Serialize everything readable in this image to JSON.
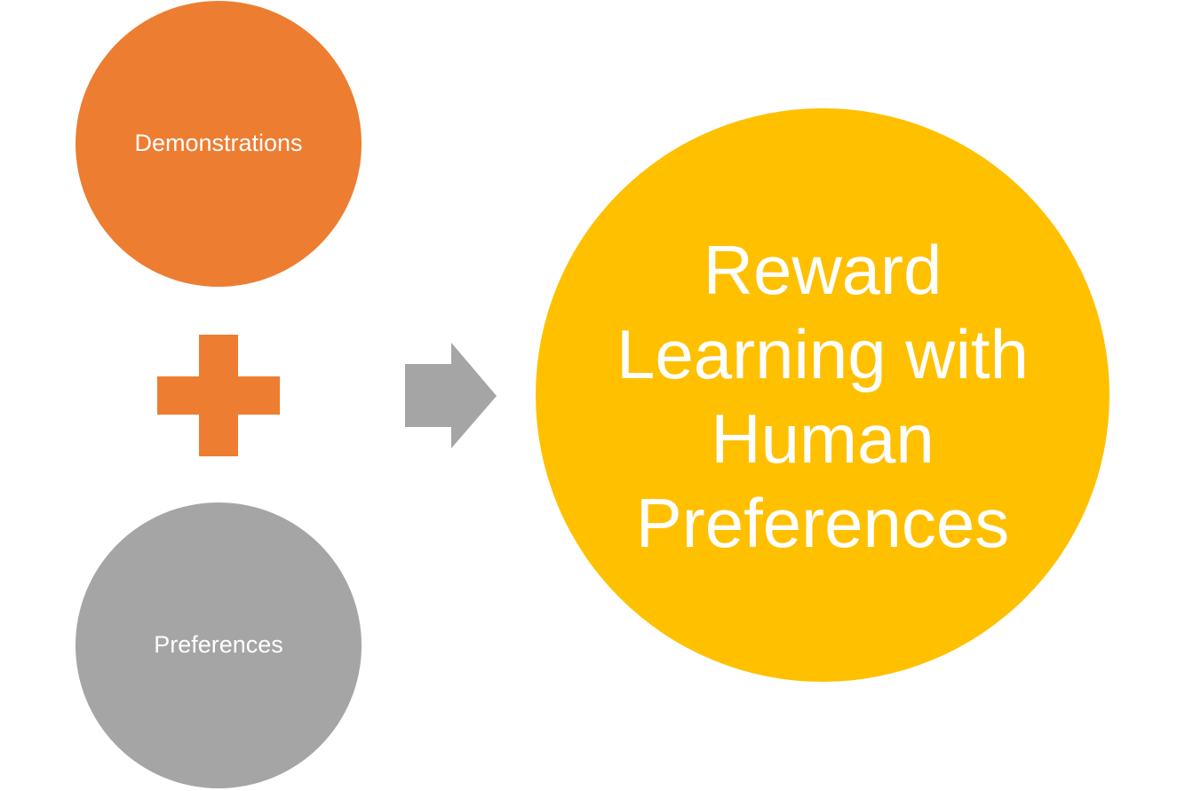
{
  "colors": {
    "orange": "#ED7D31",
    "gray": "#A5A5A5",
    "gold": "#FFC000",
    "text": "#FFFFFF"
  },
  "inputs": {
    "top": {
      "label": "Demonstrations"
    },
    "bottom": {
      "label": "Preferences"
    }
  },
  "operator": {
    "icon": "plus-icon"
  },
  "connector": {
    "icon": "arrow-right-icon"
  },
  "output": {
    "label": "Reward Learning with Human Preferences"
  }
}
